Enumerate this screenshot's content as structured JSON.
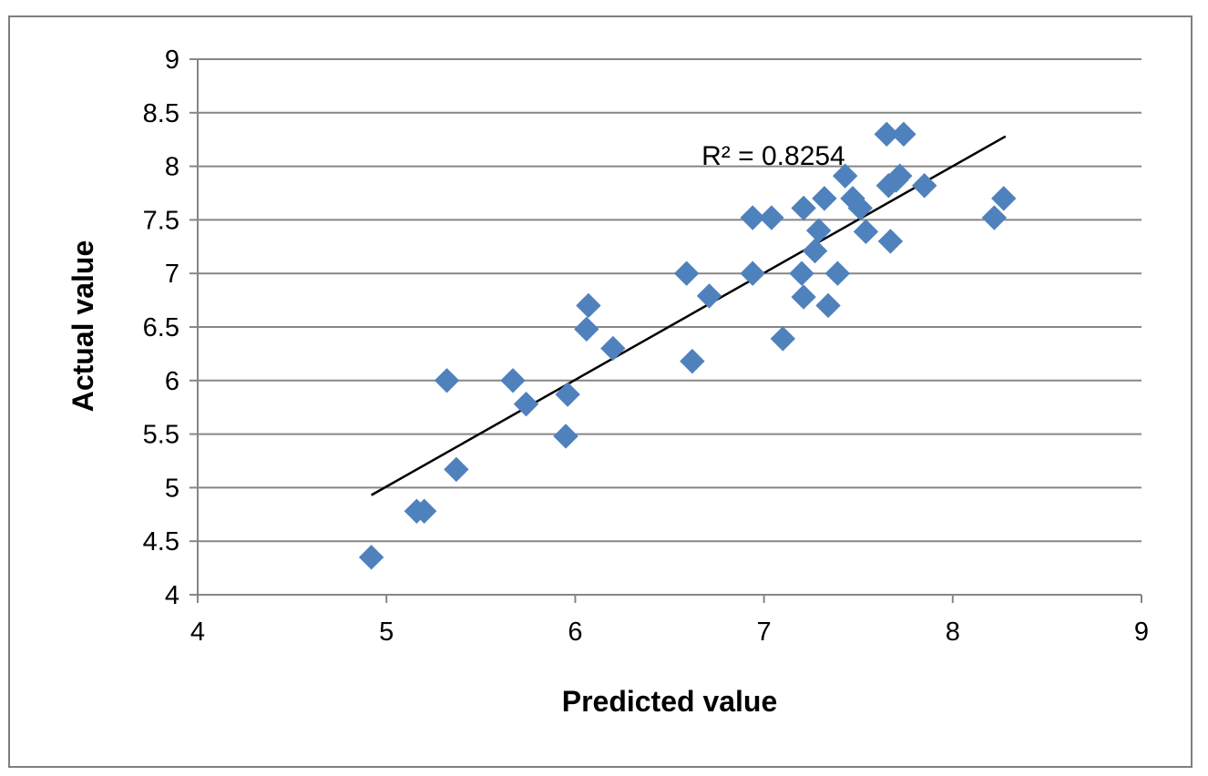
{
  "chart_data": {
    "type": "scatter",
    "title": "",
    "xlabel": "Predicted value",
    "ylabel": "Actual value",
    "xlim": [
      4,
      9
    ],
    "ylim": [
      4,
      9
    ],
    "x_ticks": [
      "4",
      "5",
      "6",
      "7",
      "8",
      "9"
    ],
    "y_ticks": [
      "4",
      "4.5",
      "5",
      "5.5",
      "6",
      "6.5",
      "7",
      "7.5",
      "8",
      "8.5",
      "9"
    ],
    "grid": "horizontal",
    "legend": "none",
    "marker": "diamond",
    "colors": {
      "marker": "#4f81bd",
      "trendline": "#000000",
      "gridline": "#868686",
      "axis": "#868686"
    },
    "series": [
      {
        "points": [
          [
            4.92,
            4.35
          ],
          [
            5.16,
            4.78
          ],
          [
            5.2,
            4.78
          ],
          [
            5.32,
            6.0
          ],
          [
            5.37,
            5.17
          ],
          [
            5.67,
            6.0
          ],
          [
            5.74,
            5.78
          ],
          [
            5.95,
            5.48
          ],
          [
            5.96,
            5.87
          ],
          [
            6.06,
            6.48
          ],
          [
            6.07,
            6.7
          ],
          [
            6.2,
            6.3
          ],
          [
            6.59,
            7.0
          ],
          [
            6.62,
            6.18
          ],
          [
            6.71,
            6.79
          ],
          [
            6.94,
            7.52
          ],
          [
            6.94,
            7.0
          ],
          [
            7.04,
            7.52
          ],
          [
            7.1,
            6.39
          ],
          [
            7.2,
            7.0
          ],
          [
            7.21,
            7.61
          ],
          [
            7.21,
            6.78
          ],
          [
            7.27,
            7.21
          ],
          [
            7.29,
            7.4
          ],
          [
            7.32,
            7.7
          ],
          [
            7.34,
            6.7
          ],
          [
            7.39,
            7.0
          ],
          [
            7.43,
            7.91
          ],
          [
            7.47,
            7.7
          ],
          [
            7.51,
            7.61
          ],
          [
            7.54,
            7.39
          ],
          [
            7.65,
            8.3
          ],
          [
            7.66,
            7.82
          ],
          [
            7.67,
            7.3
          ],
          [
            7.7,
            7.87
          ],
          [
            7.72,
            7.91
          ],
          [
            7.74,
            8.3
          ],
          [
            7.85,
            7.82
          ],
          [
            8.22,
            7.52
          ],
          [
            8.27,
            7.7
          ]
        ]
      }
    ],
    "trendline": {
      "x1": 4.92,
      "y1": 4.93,
      "x2": 8.28,
      "y2": 8.28
    },
    "annotations": [
      {
        "text": "R² = 0.8254",
        "x": 7.05,
        "y": 8.1
      }
    ]
  }
}
